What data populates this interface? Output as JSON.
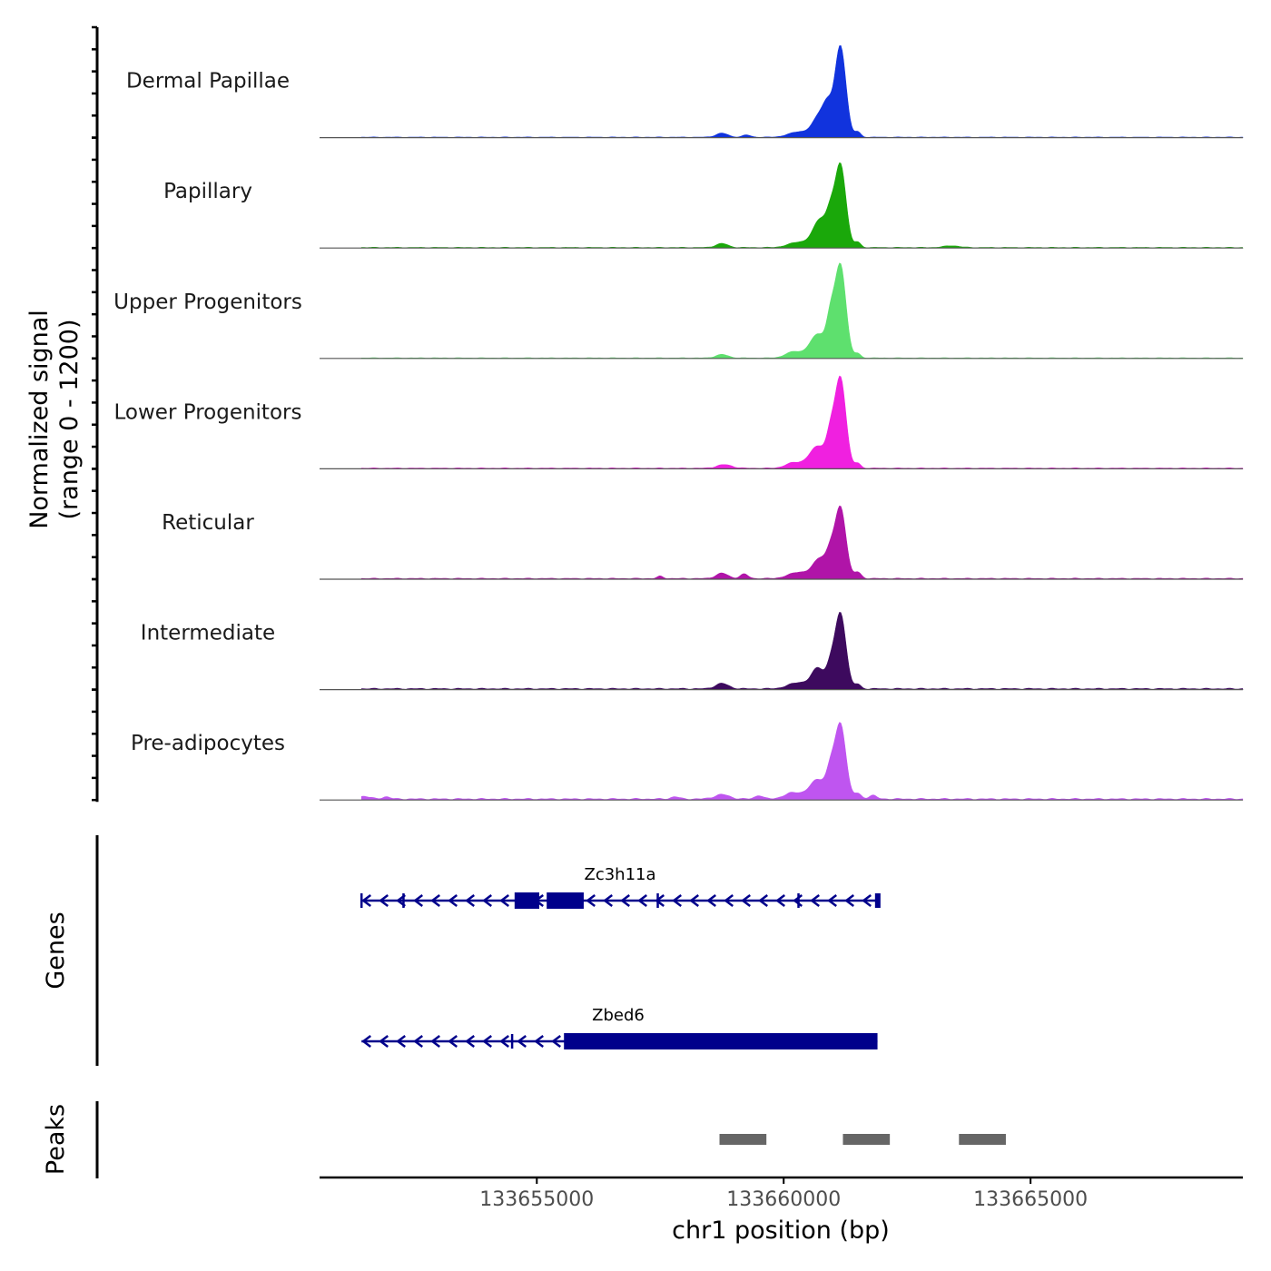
{
  "chart_data": {
    "type": "area",
    "title": "",
    "chromosome": "chr1",
    "xlabel": "chr1 position (bp)",
    "ylabel_line1": "Normalized signal",
    "ylabel_line2": "(range 0 - 1200)",
    "yrange": [
      0,
      1200
    ],
    "xlim": [
      133650600,
      133669300
    ],
    "x_ticks": [
      {
        "value": 133655000,
        "label": "133655000"
      },
      {
        "value": 133660000,
        "label": "133660000"
      },
      {
        "value": 133665000,
        "label": "133665000"
      }
    ],
    "series": [
      {
        "name": "Dermal Papillae",
        "color": "#1133dd",
        "baseline": 5,
        "peaks": [
          {
            "x": 133661150,
            "height": 1020,
            "width": 110
          },
          {
            "x": 133660750,
            "height": 260,
            "width": 150
          },
          {
            "x": 133660900,
            "height": 220,
            "width": 90
          },
          {
            "x": 133660300,
            "height": 60,
            "width": 200
          },
          {
            "x": 133661500,
            "height": 60,
            "width": 60
          },
          {
            "x": 133658750,
            "height": 45,
            "width": 120
          },
          {
            "x": 133659250,
            "height": 25,
            "width": 80
          }
        ]
      },
      {
        "name": "Papillary",
        "color": "#1aa80a",
        "baseline": 6,
        "peaks": [
          {
            "x": 133661150,
            "height": 930,
            "width": 110
          },
          {
            "x": 133660750,
            "height": 320,
            "width": 150
          },
          {
            "x": 133660950,
            "height": 250,
            "width": 80
          },
          {
            "x": 133660300,
            "height": 60,
            "width": 200
          },
          {
            "x": 133661500,
            "height": 60,
            "width": 60
          },
          {
            "x": 133658750,
            "height": 45,
            "width": 120
          },
          {
            "x": 133663400,
            "height": 20,
            "width": 150
          }
        ]
      },
      {
        "name": "Upper Progenitors",
        "color": "#5ee06e",
        "baseline": 5,
        "peaks": [
          {
            "x": 133661150,
            "height": 1040,
            "width": 110
          },
          {
            "x": 133660700,
            "height": 270,
            "width": 170
          },
          {
            "x": 133660950,
            "height": 350,
            "width": 80
          },
          {
            "x": 133660200,
            "height": 70,
            "width": 160
          },
          {
            "x": 133661500,
            "height": 50,
            "width": 60
          },
          {
            "x": 133658750,
            "height": 40,
            "width": 120
          }
        ]
      },
      {
        "name": "Lower Progenitors",
        "color": "#f020e0",
        "baseline": 7,
        "peaks": [
          {
            "x": 133661150,
            "height": 1010,
            "width": 110
          },
          {
            "x": 133660700,
            "height": 250,
            "width": 180
          },
          {
            "x": 133660950,
            "height": 280,
            "width": 80
          },
          {
            "x": 133660200,
            "height": 60,
            "width": 160
          },
          {
            "x": 133661500,
            "height": 55,
            "width": 60
          },
          {
            "x": 133658800,
            "height": 40,
            "width": 150
          }
        ]
      },
      {
        "name": "Reticular",
        "color": "#b014a8",
        "baseline": 8,
        "peaks": [
          {
            "x": 133661150,
            "height": 800,
            "width": 110
          },
          {
            "x": 133660750,
            "height": 230,
            "width": 150
          },
          {
            "x": 133660950,
            "height": 200,
            "width": 80
          },
          {
            "x": 133660300,
            "height": 70,
            "width": 200
          },
          {
            "x": 133661500,
            "height": 70,
            "width": 70
          },
          {
            "x": 133658750,
            "height": 60,
            "width": 120
          },
          {
            "x": 133659200,
            "height": 50,
            "width": 80
          },
          {
            "x": 133657500,
            "height": 25,
            "width": 60
          }
        ]
      },
      {
        "name": "Intermediate",
        "color": "#3d0a5e",
        "baseline": 10,
        "peaks": [
          {
            "x": 133661150,
            "height": 850,
            "width": 110
          },
          {
            "x": 133660700,
            "height": 230,
            "width": 130
          },
          {
            "x": 133660950,
            "height": 210,
            "width": 80
          },
          {
            "x": 133660300,
            "height": 70,
            "width": 200
          },
          {
            "x": 133661500,
            "height": 50,
            "width": 60
          },
          {
            "x": 133658750,
            "height": 60,
            "width": 130
          }
        ]
      },
      {
        "name": "Pre-adipocytes",
        "color": "#bf55f0",
        "baseline": 12,
        "peaks": [
          {
            "x": 133661150,
            "height": 840,
            "width": 110
          },
          {
            "x": 133660700,
            "height": 220,
            "width": 170
          },
          {
            "x": 133660950,
            "height": 250,
            "width": 80
          },
          {
            "x": 133660200,
            "height": 70,
            "width": 180
          },
          {
            "x": 133661500,
            "height": 60,
            "width": 70
          },
          {
            "x": 133661800,
            "height": 40,
            "width": 80
          },
          {
            "x": 133658750,
            "height": 50,
            "width": 150
          },
          {
            "x": 133659500,
            "height": 40,
            "width": 80
          },
          {
            "x": 133651500,
            "height": 30,
            "width": 120
          },
          {
            "x": 133651950,
            "height": 25,
            "width": 80
          },
          {
            "x": 133657800,
            "height": 25,
            "width": 80
          }
        ]
      }
    ],
    "genes_label": "Genes",
    "genes": [
      {
        "name": "Zc3h11a",
        "strand": "-",
        "start": 133651450,
        "end": 133661950,
        "thick_blocks": [
          [
            133654550,
            133655050
          ],
          [
            133655200,
            133655950
          ]
        ],
        "thin_blocks": [
          [
            133661850,
            133661950
          ]
        ],
        "exon_marks": [
          133651450,
          133652300,
          133660300,
          133657450
        ]
      },
      {
        "name": "Zbed6",
        "strand": "-",
        "start": 133651450,
        "end": 133661900,
        "thick_blocks": [
          [
            133655550,
            133661900
          ]
        ],
        "thin_blocks": [],
        "exon_marks": [
          133654500
        ]
      }
    ],
    "peaks_label": "Peaks",
    "peak_regions": [
      [
        133658700,
        133659650
      ],
      [
        133661200,
        133662150
      ],
      [
        133663550,
        133664500
      ]
    ],
    "gene_color": "#00008b",
    "peak_color": "#666666"
  }
}
